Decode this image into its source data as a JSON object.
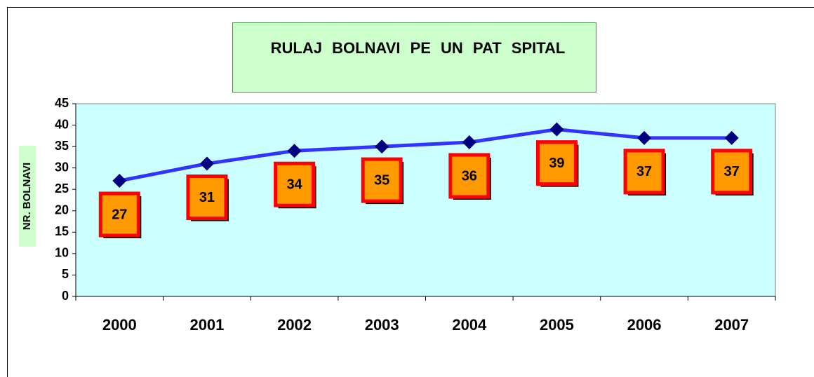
{
  "chart_data": {
    "type": "line",
    "title": "RULAJ  BOLNAVI  PE UN  PAT SPITAL",
    "y_label": "NR. BOLNAVI",
    "categories": [
      "2000",
      "2001",
      "2002",
      "2003",
      "2004",
      "2005",
      "2006",
      "2007"
    ],
    "series": [
      {
        "name": "NR. BOLNAVI",
        "color": "#3333ff",
        "marker_color": "#000080",
        "values": [
          27,
          31,
          34,
          35,
          36,
          39,
          37,
          37
        ]
      }
    ],
    "ylim": [
      0,
      45
    ],
    "yticks": [
      0,
      5,
      10,
      15,
      20,
      25,
      30,
      35,
      40,
      45
    ],
    "plot_color": "#ccffff",
    "label_fill": "#ff9900",
    "label_border": "#ff0000"
  }
}
